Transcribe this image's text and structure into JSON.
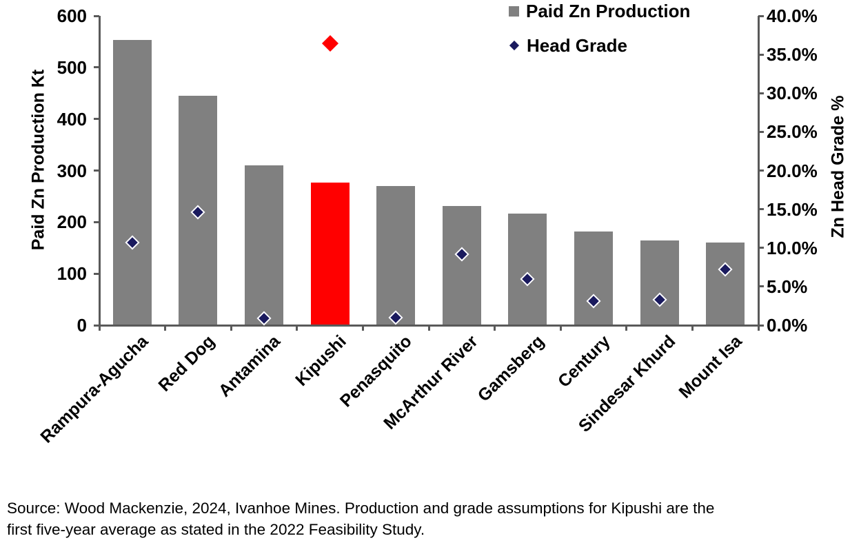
{
  "chart_data": {
    "type": "combo",
    "categories": [
      "Rampura-Agucha",
      "Red Dog",
      "Antamina",
      "Kipushi",
      "Penasquito",
      "McArthur River",
      "Gamsberg",
      "Century",
      "Sindesar Khurd",
      "Mount Isa"
    ],
    "series": [
      {
        "name": "Paid Zn Production",
        "type": "bar",
        "axis": "left",
        "unit": "Kt",
        "values": [
          553,
          445,
          310,
          277,
          270,
          231,
          217,
          182,
          165,
          160
        ]
      },
      {
        "name": "Head Grade",
        "type": "scatter",
        "marker": "diamond",
        "axis": "right",
        "unit": "%",
        "values": [
          10.7,
          14.6,
          0.9,
          36.4,
          1.0,
          9.2,
          6.0,
          3.1,
          3.3,
          7.2
        ]
      }
    ],
    "highlight": {
      "category": "Kipushi",
      "index": 3
    },
    "left_axis": {
      "title": "Paid Zn Production Kt",
      "min": 0,
      "max": 600,
      "tick_step": 100,
      "tick_labels": [
        "0",
        "100",
        "200",
        "300",
        "400",
        "500",
        "600"
      ]
    },
    "right_axis": {
      "title": "Zn Head Grade %",
      "min": 0,
      "max": 40,
      "tick_step": 5,
      "tick_labels": [
        "0.0%",
        "5.0%",
        "10.0%",
        "15.0%",
        "20.0%",
        "25.0%",
        "30.0%",
        "35.0%",
        "40.0%"
      ]
    },
    "legend": {
      "position": "top-right",
      "items": [
        {
          "label": "Paid Zn Production",
          "marker": "square",
          "color": "#808080"
        },
        {
          "label": "Head Grade",
          "marker": "diamond",
          "color": "#1a1a5e"
        }
      ]
    },
    "grid": false
  },
  "colors": {
    "bar": "#808080",
    "highlight": "#ff0000",
    "diamond": "#1a1a5e",
    "diamond_outline": "#ffffff",
    "axis": "#595959",
    "text": "#000000",
    "background": "#ffffff"
  },
  "source": {
    "line1": "Source: Wood Mackenzie, 2024, Ivanhoe Mines. Production and grade assumptions for Kipushi are the",
    "line2": "first five-year average as stated in the 2022 Feasibility Study."
  }
}
